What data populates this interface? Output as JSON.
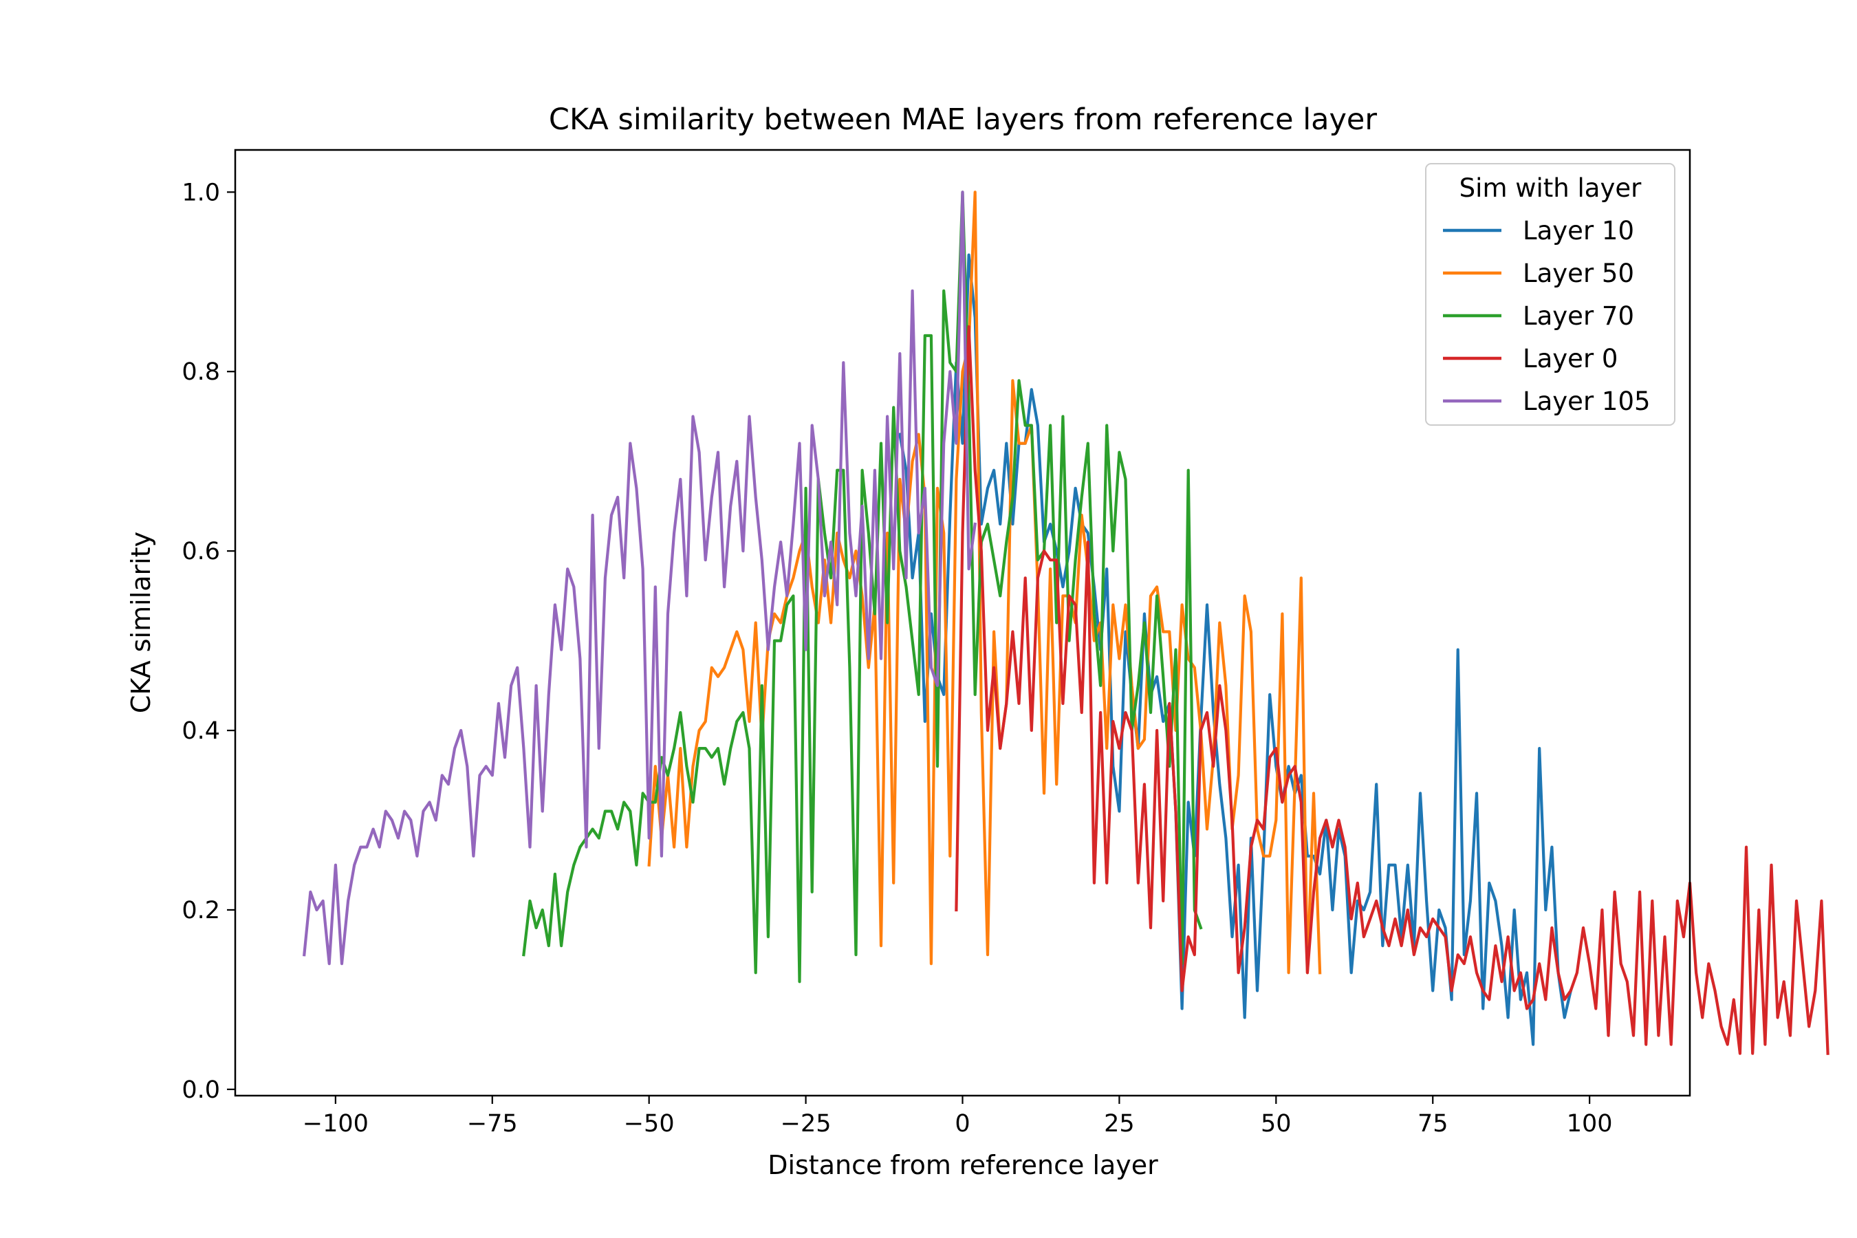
{
  "chart_data": {
    "type": "line",
    "title": "CKA similarity between MAE layers from reference layer",
    "xlabel": "Distance from reference layer",
    "ylabel": "CKA similarity",
    "xlim": [
      -116,
      116
    ],
    "ylim": [
      -0.007,
      1.047
    ],
    "xticks": [
      -100,
      -75,
      -50,
      -25,
      0,
      25,
      50,
      75,
      100
    ],
    "xtick_labels": [
      "−100",
      "−75",
      "−50",
      "−25",
      "0",
      "25",
      "50",
      "75",
      "100"
    ],
    "yticks": [
      0.0,
      0.2,
      0.4,
      0.6,
      0.8,
      1.0
    ],
    "ytick_labels": [
      "0.0",
      "0.2",
      "0.4",
      "0.6",
      "0.8",
      "1.0"
    ],
    "grid": false,
    "legend": {
      "title": "Sim with layer",
      "position": "top-right"
    },
    "series": [
      {
        "name": "Layer 10",
        "color": "#1f77b4",
        "x_start": -10,
        "values": [
          0.73,
          0.69,
          0.57,
          0.62,
          0.41,
          0.53,
          0.46,
          0.44,
          0.64,
          0.81,
          0.72,
          0.93,
          0.86,
          0.63,
          0.67,
          0.69,
          0.63,
          0.72,
          0.63,
          0.72,
          0.72,
          0.78,
          0.74,
          0.61,
          0.63,
          0.6,
          0.56,
          0.6,
          0.67,
          0.63,
          0.62,
          0.56,
          0.49,
          0.58,
          0.36,
          0.31,
          0.51,
          0.44,
          0.38,
          0.53,
          0.44,
          0.46,
          0.41,
          0.43,
          0.31,
          0.09,
          0.32,
          0.26,
          0.41,
          0.54,
          0.42,
          0.34,
          0.28,
          0.17,
          0.25,
          0.08,
          0.28,
          0.11,
          0.26,
          0.44,
          0.36,
          0.32,
          0.36,
          0.33,
          0.35,
          0.26,
          0.26,
          0.24,
          0.3,
          0.2,
          0.29,
          0.26,
          0.13,
          0.21,
          0.2,
          0.22,
          0.34,
          0.16,
          0.25,
          0.25,
          0.17,
          0.25,
          0.16,
          0.33,
          0.21,
          0.11,
          0.2,
          0.18,
          0.1,
          0.49,
          0.15,
          0.21,
          0.33,
          0.09,
          0.23,
          0.21,
          0.16,
          0.08,
          0.2,
          0.1,
          0.13,
          0.05,
          0.38,
          0.2,
          0.27,
          0.13,
          0.08,
          0.11
        ]
      },
      {
        "name": "Layer 50",
        "color": "#ff7f0e",
        "x_start": -50,
        "values": [
          0.25,
          0.36,
          0.28,
          0.35,
          0.27,
          0.38,
          0.27,
          0.36,
          0.4,
          0.41,
          0.47,
          0.46,
          0.47,
          0.49,
          0.51,
          0.49,
          0.41,
          0.52,
          0.39,
          0.5,
          0.53,
          0.52,
          0.55,
          0.57,
          0.6,
          0.62,
          0.56,
          0.52,
          0.59,
          0.52,
          0.62,
          0.59,
          0.57,
          0.6,
          0.55,
          0.47,
          0.54,
          0.16,
          0.62,
          0.23,
          0.68,
          0.62,
          0.7,
          0.73,
          0.66,
          0.14,
          0.67,
          0.62,
          0.26,
          0.68,
          0.8,
          0.83,
          1.0,
          0.42,
          0.15,
          0.51,
          0.38,
          0.43,
          0.79,
          0.72,
          0.72,
          0.74,
          0.56,
          0.33,
          0.58,
          0.34,
          0.55,
          0.55,
          0.52,
          0.64,
          0.58,
          0.5,
          0.52,
          0.38,
          0.54,
          0.48,
          0.54,
          0.45,
          0.38,
          0.39,
          0.55,
          0.56,
          0.51,
          0.51,
          0.4,
          0.54,
          0.48,
          0.47,
          0.4,
          0.29,
          0.37,
          0.52,
          0.45,
          0.29,
          0.35,
          0.55,
          0.51,
          0.29,
          0.26,
          0.26,
          0.3,
          0.53,
          0.13,
          0.34,
          0.57,
          0.13,
          0.33,
          0.13
        ]
      },
      {
        "name": "Layer 70",
        "color": "#2ca02c",
        "x_start": -70,
        "values": [
          0.15,
          0.21,
          0.18,
          0.2,
          0.16,
          0.24,
          0.16,
          0.22,
          0.25,
          0.27,
          0.28,
          0.29,
          0.28,
          0.31,
          0.31,
          0.29,
          0.32,
          0.31,
          0.25,
          0.33,
          0.32,
          0.32,
          0.37,
          0.35,
          0.38,
          0.42,
          0.36,
          0.32,
          0.38,
          0.38,
          0.37,
          0.38,
          0.34,
          0.38,
          0.41,
          0.42,
          0.38,
          0.13,
          0.45,
          0.17,
          0.5,
          0.5,
          0.54,
          0.55,
          0.12,
          0.67,
          0.22,
          0.68,
          0.62,
          0.57,
          0.69,
          0.69,
          0.47,
          0.15,
          0.69,
          0.62,
          0.53,
          0.72,
          0.52,
          0.76,
          0.6,
          0.56,
          0.5,
          0.44,
          0.84,
          0.84,
          0.36,
          0.89,
          0.81,
          0.8,
          1.0,
          0.77,
          0.44,
          0.61,
          0.63,
          0.59,
          0.55,
          0.61,
          0.66,
          0.79,
          0.74,
          0.74,
          0.59,
          0.6,
          0.74,
          0.52,
          0.75,
          0.5,
          0.59,
          0.66,
          0.72,
          0.53,
          0.45,
          0.74,
          0.6,
          0.71,
          0.68,
          0.4,
          0.45,
          0.52,
          0.42,
          0.55,
          0.46,
          0.36,
          0.49,
          0.14,
          0.69,
          0.2,
          0.18
        ]
      },
      {
        "name": "Layer 0",
        "color": "#d62728",
        "x_start": -1,
        "values": [
          0.2,
          0.62,
          0.85,
          0.69,
          0.6,
          0.4,
          0.47,
          0.38,
          0.43,
          0.51,
          0.43,
          0.57,
          0.4,
          0.57,
          0.6,
          0.59,
          0.59,
          0.43,
          0.55,
          0.54,
          0.42,
          0.61,
          0.23,
          0.42,
          0.23,
          0.41,
          0.38,
          0.42,
          0.4,
          0.23,
          0.34,
          0.18,
          0.4,
          0.21,
          0.43,
          0.31,
          0.11,
          0.17,
          0.15,
          0.4,
          0.42,
          0.36,
          0.45,
          0.4,
          0.3,
          0.13,
          0.18,
          0.27,
          0.3,
          0.29,
          0.37,
          0.38,
          0.32,
          0.35,
          0.36,
          0.32,
          0.13,
          0.22,
          0.28,
          0.3,
          0.27,
          0.3,
          0.27,
          0.19,
          0.23,
          0.17,
          0.19,
          0.21,
          0.18,
          0.16,
          0.19,
          0.16,
          0.2,
          0.15,
          0.18,
          0.17,
          0.19,
          0.18,
          0.17,
          0.11,
          0.15,
          0.14,
          0.17,
          0.13,
          0.11,
          0.1,
          0.16,
          0.12,
          0.17,
          0.11,
          0.13,
          0.09,
          0.1,
          0.14,
          0.1,
          0.18,
          0.13,
          0.1,
          0.11,
          0.13,
          0.18,
          0.14,
          0.09,
          0.2,
          0.06,
          0.22,
          0.14,
          0.12,
          0.06,
          0.22,
          0.05,
          0.21,
          0.06,
          0.17,
          0.05,
          0.21,
          0.17,
          0.23,
          0.13,
          0.08,
          0.14,
          0.11,
          0.07,
          0.05,
          0.1,
          0.04,
          0.27,
          0.04,
          0.2,
          0.05,
          0.25,
          0.08,
          0.12,
          0.06,
          0.21,
          0.14,
          0.07,
          0.11,
          0.21,
          0.04
        ]
      },
      {
        "name": "Layer 105",
        "color": "#9467bd",
        "x_start": -105,
        "values": [
          0.15,
          0.22,
          0.2,
          0.21,
          0.14,
          0.25,
          0.14,
          0.21,
          0.25,
          0.27,
          0.27,
          0.29,
          0.27,
          0.31,
          0.3,
          0.28,
          0.31,
          0.3,
          0.26,
          0.31,
          0.32,
          0.3,
          0.35,
          0.34,
          0.38,
          0.4,
          0.36,
          0.26,
          0.35,
          0.36,
          0.35,
          0.43,
          0.37,
          0.45,
          0.47,
          0.38,
          0.27,
          0.45,
          0.31,
          0.44,
          0.54,
          0.49,
          0.58,
          0.56,
          0.48,
          0.27,
          0.64,
          0.38,
          0.57,
          0.64,
          0.66,
          0.57,
          0.72,
          0.67,
          0.58,
          0.28,
          0.56,
          0.26,
          0.53,
          0.62,
          0.68,
          0.55,
          0.75,
          0.71,
          0.59,
          0.66,
          0.71,
          0.56,
          0.65,
          0.7,
          0.6,
          0.75,
          0.66,
          0.59,
          0.49,
          0.56,
          0.61,
          0.55,
          0.63,
          0.72,
          0.49,
          0.74,
          0.68,
          0.55,
          0.61,
          0.54,
          0.81,
          0.62,
          0.55,
          0.65,
          0.48,
          0.69,
          0.48,
          0.75,
          0.58,
          0.82,
          0.57,
          0.89,
          0.62,
          0.67,
          0.47,
          0.45,
          0.72,
          0.8,
          0.72,
          1.0,
          0.58,
          0.63
        ]
      }
    ]
  }
}
